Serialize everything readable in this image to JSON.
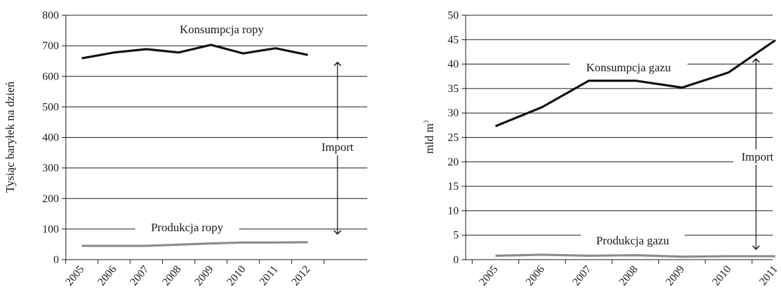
{
  "chart_data": [
    {
      "type": "line",
      "x": [
        "2005",
        "2006",
        "2007",
        "2008",
        "2009",
        "2010",
        "2011",
        "2012"
      ],
      "series": [
        {
          "name": "Konsumpcja ropy",
          "values": [
            659,
            678,
            689,
            678,
            703,
            675,
            692,
            670
          ],
          "color": "#111111"
        },
        {
          "name": "Produkcja ropy",
          "values": [
            45,
            45,
            45,
            49,
            53,
            56,
            56,
            57
          ],
          "color": "#8c8c8c"
        }
      ],
      "annotation": "Import",
      "xlabel": "",
      "ylabel": "Tysiąc baryłek na dzień",
      "ylim": [
        0,
        800
      ],
      "yticks": [
        0,
        100,
        200,
        300,
        400,
        500,
        600,
        700,
        800
      ],
      "grid": "horizontal"
    },
    {
      "type": "line",
      "x": [
        "2005",
        "2006",
        "2007",
        "2008",
        "2009",
        "2010",
        "2011"
      ],
      "series": [
        {
          "name": "Konsumpcja gazu",
          "values": [
            27.3,
            31.2,
            36.6,
            36.6,
            35.2,
            38.3,
            44.9
          ],
          "color": "#111111"
        },
        {
          "name": "Produkcja gazu",
          "values": [
            0.8,
            1.0,
            0.8,
            0.9,
            0.6,
            0.7,
            0.7
          ],
          "color": "#8c8c8c"
        }
      ],
      "annotation": "Import",
      "xlabel": "",
      "ylabel": "mld m",
      "ylabel_superscript": "3",
      "ylim": [
        0,
        50
      ],
      "yticks": [
        0,
        5,
        10,
        15,
        20,
        25,
        30,
        35,
        40,
        45,
        50
      ],
      "grid": "horizontal"
    }
  ]
}
